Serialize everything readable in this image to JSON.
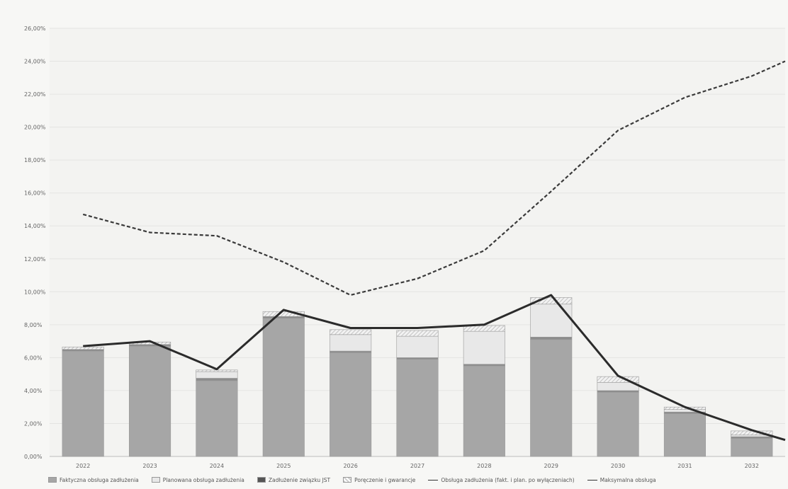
{
  "chart_data": {
    "type": "bar",
    "categories": [
      "2022",
      "2023",
      "2024",
      "2025",
      "2026",
      "2027",
      "2028",
      "2029",
      "2030",
      "2031",
      "2032"
    ],
    "ylim": [
      0,
      26
    ],
    "yticks": [
      "0,00%",
      "2,00%",
      "4,00%",
      "6,00%",
      "8,00%",
      "10,00%",
      "12,00%",
      "14,00%",
      "16,00%",
      "18,00%",
      "20,00%",
      "22,00%",
      "24,00%",
      "26,00%"
    ],
    "ytick_values": [
      0,
      2,
      4,
      6,
      8,
      10,
      12,
      14,
      16,
      18,
      20,
      22,
      24,
      26
    ],
    "grid": true,
    "legend_position": "bottom",
    "bar_series": [
      {
        "name": "Faktyczna obsługa zadłużenia",
        "color": "#a6a6a6",
        "values": [
          6.4,
          6.7,
          4.6,
          8.4,
          6.3,
          5.9,
          5.5,
          7.1,
          3.9,
          2.6,
          1.1
        ]
      },
      {
        "name": "Zadłużenie związku JST",
        "color": "#8c8c8c",
        "values": [
          0.1,
          0.1,
          0.15,
          0.1,
          0.1,
          0.1,
          0.1,
          0.15,
          0.1,
          0.1,
          0.1
        ]
      },
      {
        "name": "Planowana obsługa zadłużenia",
        "color": "#e8e8e8",
        "values": [
          0,
          0,
          0.4,
          0,
          1.0,
          1.3,
          2.0,
          2.0,
          0.5,
          0.15,
          0.1
        ]
      },
      {
        "name": "Poręczenie i gwarancje",
        "color": "#cfcfcf",
        "values": [
          0.15,
          0.15,
          0.1,
          0.3,
          0.3,
          0.35,
          0.35,
          0.4,
          0.35,
          0.15,
          0.25
        ]
      }
    ],
    "line_series": [
      {
        "name": "Obsługa zadłużenia (fakt. i plan. po wyłączeniach)",
        "style": "solid",
        "color": "#2b2b2b",
        "values": [
          6.7,
          7.0,
          5.3,
          8.9,
          7.8,
          7.8,
          8.0,
          9.8,
          4.9,
          3.0,
          1.6
        ]
      },
      {
        "name": "Maksymalna obsługa",
        "style": "dashed",
        "color": "#3a3a3a",
        "values": [
          14.7,
          13.6,
          13.4,
          11.8,
          9.8,
          10.8,
          12.5,
          16.1,
          19.8,
          21.8,
          23.1
        ]
      }
    ],
    "line_end_values": {
      "solid": 1.0,
      "dashed": 24.0
    }
  }
}
